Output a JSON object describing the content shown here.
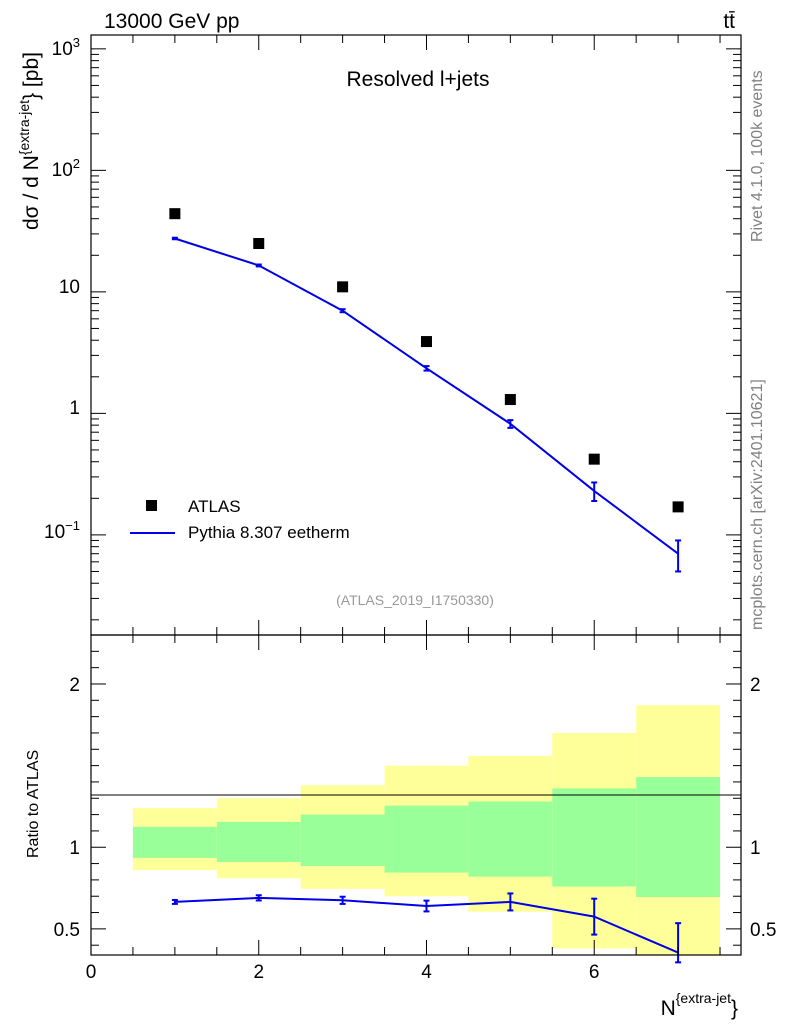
{
  "header": {
    "left_label": "13000 GeV pp",
    "right_label": "tt̄"
  },
  "side_labels": {
    "rivet": "Rivet 4.1.0,  100k events",
    "mcplots": "mcplots.cern.ch [arXiv:2401.10621]"
  },
  "colors": {
    "mc_line": "#0000e6",
    "band_inner": "#99ff99",
    "band_outer": "#ffff99",
    "data_marker": "#000000"
  },
  "chart_data": [
    {
      "type": "scatter",
      "title": "Resolved l+jets",
      "analysis_label": "(ATLAS_2019_I1750330)",
      "ylabel_main": "dσ / d N",
      "ylabel_sup": "{extra-jet",
      "ylabel_tail": "} [pb]",
      "yscale": "log",
      "ylim": [
        0.015,
        1300
      ],
      "xlim": [
        0,
        7.75
      ],
      "y_tick_labels": {
        "v1000": "10",
        "v1000_exp": "3",
        "v100": "10",
        "v100_exp": "2",
        "v10": "10",
        "v1": "1",
        "v01": "10",
        "v01_exp": "−1"
      },
      "legend": [
        {
          "label": "ATLAS",
          "style": "square-marker"
        },
        {
          "label": "Pythia 8.307 eetherm",
          "style": "line"
        }
      ],
      "series": [
        {
          "name": "ATLAS",
          "x": [
            1,
            2,
            3,
            4,
            5,
            6,
            7
          ],
          "y": [
            44,
            25,
            11,
            3.9,
            1.3,
            0.42,
            0.17
          ]
        },
        {
          "name": "Pythia 8.307 eetherm",
          "x": [
            1,
            2,
            3,
            4,
            5,
            6,
            7
          ],
          "y": [
            27.5,
            16.5,
            7.0,
            2.35,
            0.82,
            0.23,
            0.07
          ],
          "y_err_low": [
            0.4,
            0.3,
            0.2,
            0.1,
            0.06,
            0.04,
            0.02
          ],
          "y_err_high": [
            0.4,
            0.3,
            0.2,
            0.1,
            0.06,
            0.04,
            0.02
          ]
        }
      ]
    },
    {
      "type": "line",
      "ylabel": "Ratio to ATLAS",
      "xlabel_main": "N",
      "xlabel_sup": "{extra-jet",
      "xlabel_tail": "}",
      "xlim": [
        0,
        7.75
      ],
      "ylim": [
        0.34,
        2.3
      ],
      "x_ticks": [
        0,
        2,
        4,
        6
      ],
      "x_tick_labels": [
        "0",
        "2",
        "4",
        "6"
      ],
      "y_ticks": [
        0.5,
        1,
        2
      ],
      "y_tick_labels": [
        "0.5",
        "1",
        "2"
      ],
      "bands": [
        {
          "x_low": 0.5,
          "x_high": 1.5,
          "inner": [
            0.935,
            1.125
          ],
          "outer": [
            0.86,
            1.24
          ]
        },
        {
          "x_low": 1.5,
          "x_high": 2.5,
          "inner": [
            0.91,
            1.155
          ],
          "outer": [
            0.81,
            1.3
          ]
        },
        {
          "x_low": 2.5,
          "x_high": 3.5,
          "inner": [
            0.885,
            1.2
          ],
          "outer": [
            0.745,
            1.38
          ]
        },
        {
          "x_low": 3.5,
          "x_high": 4.5,
          "inner": [
            0.845,
            1.255
          ],
          "outer": [
            0.7,
            1.5
          ]
        },
        {
          "x_low": 4.5,
          "x_high": 5.5,
          "inner": [
            0.82,
            1.28
          ],
          "outer": [
            0.605,
            1.56
          ]
        },
        {
          "x_low": 5.5,
          "x_high": 6.5,
          "inner": [
            0.76,
            1.36
          ],
          "outer": [
            0.38,
            1.7
          ]
        },
        {
          "x_low": 6.5,
          "x_high": 7.5,
          "inner": [
            0.695,
            1.43
          ],
          "outer": [
            0.34,
            1.87
          ]
        }
      ],
      "series": [
        {
          "name": "Pythia 8.307 eetherm / ATLAS",
          "x": [
            1,
            2,
            3,
            4,
            5,
            6,
            7
          ],
          "y": [
            0.665,
            0.69,
            0.675,
            0.64,
            0.665,
            0.575,
            0.355
          ],
          "y_err_low": [
            0.012,
            0.016,
            0.022,
            0.033,
            0.052,
            0.11,
            0.06
          ],
          "y_err_high": [
            0.012,
            0.016,
            0.022,
            0.033,
            0.052,
            0.11,
            0.18
          ]
        }
      ]
    }
  ]
}
